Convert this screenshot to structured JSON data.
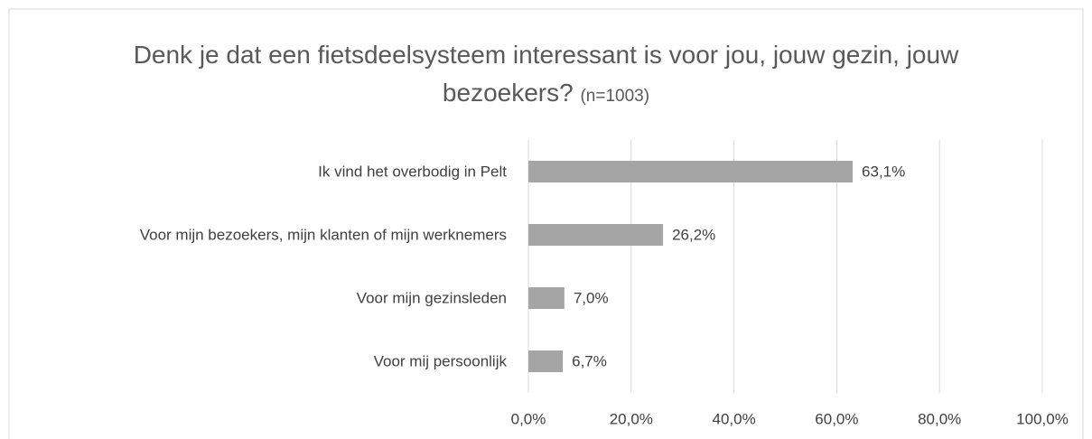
{
  "chart_data": {
    "type": "bar",
    "orientation": "horizontal",
    "title": "Denk je dat een fietsdeelsysteem interessant is voor jou, jouw gezin, jouw bezoekers?",
    "subtitle": "(n=1003)",
    "categories": [
      "Ik vind het overbodig in Pelt",
      "Voor mijn bezoekers, mijn klanten of mijn werknemers",
      "Voor mijn gezinsleden",
      "Voor mij persoonlijk"
    ],
    "values": [
      63.1,
      26.2,
      7.0,
      6.7
    ],
    "value_labels": [
      "63,1%",
      "26,2%",
      "7,0%",
      "6,7%"
    ],
    "color": "#a5a5a5",
    "xlim": [
      0,
      100
    ],
    "xticks": [
      {
        "value": 0,
        "label": "0,0%"
      },
      {
        "value": 20,
        "label": "20,0%"
      },
      {
        "value": 40,
        "label": "40,0%"
      },
      {
        "value": 60,
        "label": "60,0%"
      },
      {
        "value": 80,
        "label": "80,0%"
      },
      {
        "value": 100,
        "label": "100,0%"
      }
    ],
    "grid": true
  }
}
